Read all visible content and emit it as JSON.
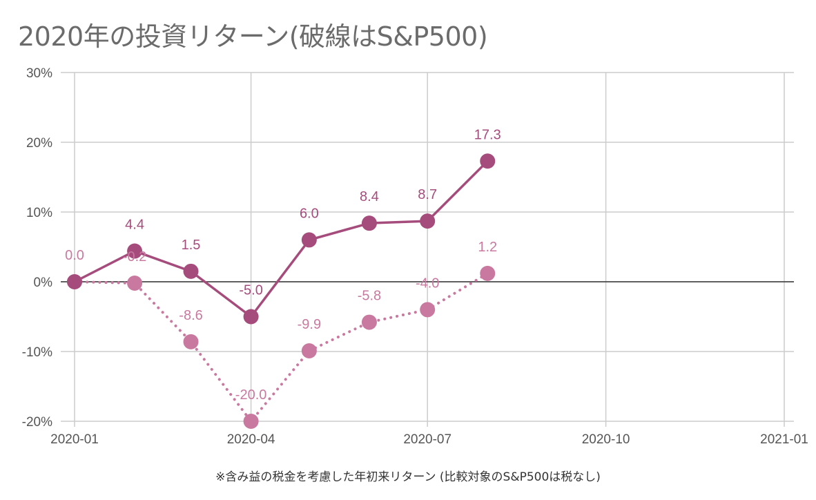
{
  "title": "2020年の投資リターン(破線はS&P500)",
  "chart_data": {
    "type": "line",
    "title": "2020年の投資リターン(破線はS&P500)",
    "xlabel": "※含み益の税金を考慮した年初来リターン (比較対象のS&P500は税なし)",
    "ylabel": "",
    "ylim": [
      -20,
      30
    ],
    "yticks": [
      "30%",
      "20%",
      "10%",
      "0%",
      "-10%",
      "-20%"
    ],
    "ytick_values": [
      30,
      20,
      10,
      0,
      -10,
      -20
    ],
    "xlim": [
      "2020-01-01",
      "2021-01-01"
    ],
    "xticks": [
      "2020-01",
      "2020-04",
      "2020-07",
      "2020-10",
      "2021-01"
    ],
    "x": [
      "2020-01-01",
      "2020-02-01",
      "2020-03-01",
      "2020-04-01",
      "2020-05-01",
      "2020-06-01",
      "2020-07-01",
      "2020-08-01"
    ],
    "grid": true,
    "series": [
      {
        "values": [
          0.0,
          4.4,
          1.5,
          -5.0,
          6.0,
          8.4,
          8.7,
          17.3
        ],
        "labels": [
          "",
          "4.4",
          "1.5",
          "-5.0",
          "6.0",
          "8.4",
          "8.7",
          "17.3"
        ],
        "color": "#a54c7c",
        "style": "solid"
      },
      {
        "values": [
          0.0,
          -0.2,
          -8.6,
          -20.0,
          -9.9,
          -5.8,
          -4.0,
          1.2
        ],
        "labels": [
          "0.0",
          "-0.2",
          "-8.6",
          "-20.0",
          "-9.9",
          "-5.8",
          "-4.0",
          "1.2"
        ],
        "color": "#c9799f",
        "style": "dotted"
      }
    ]
  }
}
